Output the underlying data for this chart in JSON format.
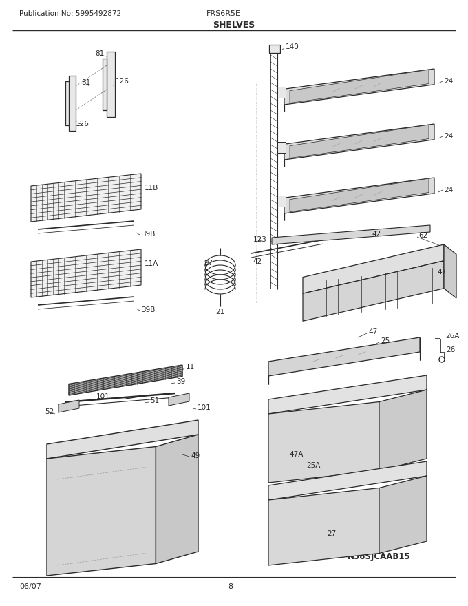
{
  "pub_no": "Publication No: 5995492872",
  "model": "FRS6R5E",
  "section": "SHELVES",
  "date": "06/07",
  "page": "8",
  "diagram_id": "N58SJCAAB15",
  "bg_color": "#ffffff",
  "line_color": "#2a2a2a",
  "fill_light": "#e8e8e8",
  "fill_med": "#d0d0d0",
  "title_fontsize": 9,
  "label_fontsize": 7.5,
  "header_fontsize": 8
}
